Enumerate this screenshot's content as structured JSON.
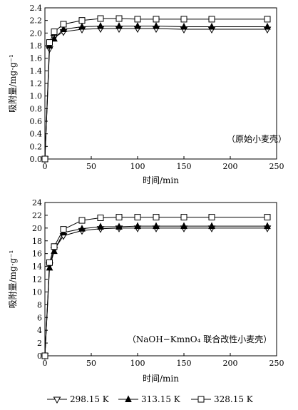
{
  "chart_data": [
    {
      "type": "line",
      "annotation": "（原始小麦壳）",
      "xlabel": "时间/min",
      "ylabel": "吸附量/mg·g⁻¹",
      "xlim": [
        0,
        250
      ],
      "ylim": [
        0,
        2.4
      ],
      "xticks": [
        0,
        50,
        100,
        150,
        200,
        250
      ],
      "yticks": [
        0,
        0.2,
        0.4,
        0.6,
        0.8,
        1.0,
        1.2,
        1.4,
        1.6,
        1.8,
        2.0,
        2.2,
        2.4
      ],
      "grid": false,
      "series": [
        {
          "name": "298.15 K",
          "marker": "triangle-down-open",
          "x": [
            0,
            5,
            10,
            20,
            40,
            60,
            80,
            100,
            120,
            150,
            180,
            240
          ],
          "y": [
            0,
            1.75,
            1.93,
            2.02,
            2.06,
            2.07,
            2.07,
            2.07,
            2.07,
            2.06,
            2.06,
            2.06
          ]
        },
        {
          "name": "313.15 K",
          "marker": "triangle-up-filled",
          "x": [
            0,
            5,
            10,
            20,
            40,
            60,
            80,
            100,
            120,
            150,
            180,
            240
          ],
          "y": [
            0,
            1.8,
            1.91,
            2.06,
            2.1,
            2.11,
            2.11,
            2.11,
            2.11,
            2.1,
            2.1,
            2.1
          ]
        },
        {
          "name": "328.15 K",
          "marker": "square-open",
          "x": [
            0,
            5,
            10,
            20,
            40,
            60,
            80,
            100,
            120,
            150,
            180,
            240
          ],
          "y": [
            0,
            1.85,
            2.02,
            2.14,
            2.2,
            2.23,
            2.23,
            2.22,
            2.22,
            2.22,
            2.22,
            2.22
          ]
        }
      ]
    },
    {
      "type": "line",
      "annotation": "（NaOH−KmnO₄ 联合改性小麦壳）",
      "xlabel": "时间/min",
      "ylabel": "吸附量/mg·g⁻¹",
      "xlim": [
        0,
        250
      ],
      "ylim": [
        0,
        24
      ],
      "xticks": [
        0,
        50,
        100,
        150,
        200,
        250
      ],
      "yticks": [
        0,
        2,
        4,
        6,
        8,
        10,
        12,
        14,
        16,
        18,
        20,
        22,
        24
      ],
      "grid": false,
      "series": [
        {
          "name": "298.15 K",
          "marker": "triangle-down-open",
          "x": [
            0,
            5,
            10,
            20,
            40,
            60,
            80,
            100,
            120,
            150,
            180,
            240
          ],
          "y": [
            0,
            14.2,
            16.6,
            18.8,
            19.6,
            19.9,
            20.0,
            20.0,
            20.0,
            20.0,
            20.0,
            20.0
          ]
        },
        {
          "name": "313.15 K",
          "marker": "triangle-up-filled",
          "x": [
            0,
            5,
            10,
            20,
            40,
            60,
            80,
            100,
            120,
            150,
            180,
            240
          ],
          "y": [
            0,
            13.8,
            16.4,
            19.3,
            19.9,
            20.2,
            20.2,
            20.3,
            20.3,
            20.3,
            20.3,
            20.3
          ]
        },
        {
          "name": "328.15 K",
          "marker": "square-open",
          "x": [
            0,
            5,
            10,
            20,
            40,
            60,
            80,
            100,
            120,
            150,
            180,
            240
          ],
          "y": [
            0,
            14.6,
            17.1,
            19.8,
            21.2,
            21.6,
            21.7,
            21.7,
            21.7,
            21.7,
            21.7,
            21.7
          ]
        }
      ]
    }
  ],
  "legend": {
    "placement": "bottom",
    "items": [
      {
        "label": "298.15 K",
        "marker": "triangle-down-open"
      },
      {
        "label": "313.15 K",
        "marker": "triangle-up-filled"
      },
      {
        "label": "328.15 K",
        "marker": "square-open"
      }
    ]
  }
}
